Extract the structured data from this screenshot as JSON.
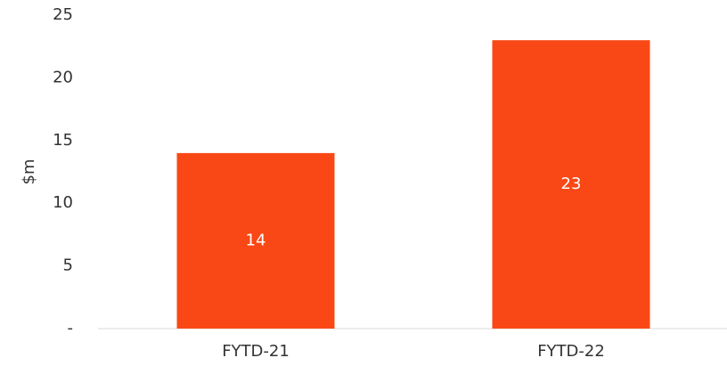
{
  "chart_data": {
    "type": "bar",
    "y_label": "$m",
    "categories": [
      "FYTD-21",
      "FYTD-22"
    ],
    "values": [
      14,
      23
    ],
    "color": "#f94816",
    "ylim": [
      0,
      25
    ],
    "yticks": [
      {
        "value": 0,
        "label": "-"
      },
      5,
      10,
      15,
      20,
      25
    ],
    "grid": false
  }
}
